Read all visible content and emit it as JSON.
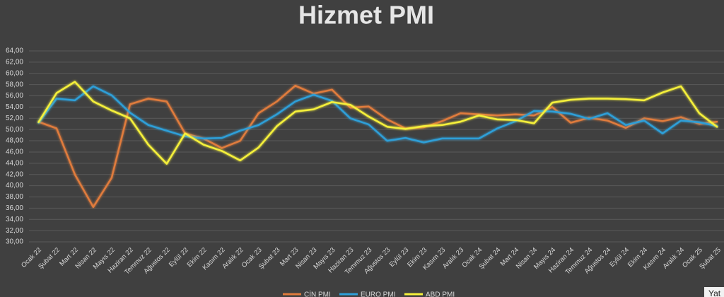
{
  "chart_data": {
    "type": "line",
    "title": "Hizmet PMI",
    "categories": [
      "Ocak 22",
      "Şubat 22",
      "Mart 22",
      "Nisan 22",
      "Mayıs 22",
      "Haziran 22",
      "Temmuz 22",
      "Ağustos 22",
      "Eylül 22",
      "Ekim 22",
      "Kasım 22",
      "Aralık 22",
      "Ocak 23",
      "Şubat 23",
      "Mart 23",
      "Nisan 23",
      "Mayıs 23",
      "Haziran 23",
      "Temmuz 23",
      "Ağustos 23",
      "Eylül 23",
      "Ekim 23",
      "Kasım 23",
      "Aralık 23",
      "Ocak 24",
      "Şubat 24",
      "Mart 24",
      "Nisan 24",
      "Mayıs 24",
      "Haziran 24",
      "Temmuz 24",
      "Ağustos 24",
      "Eylül 24",
      "Ekim 24",
      "Kasım 24",
      "Aralık 24",
      "Ocak 25",
      "Şubat 25"
    ],
    "series": [
      {
        "name": "CİN PMI",
        "color": "#e07b3c",
        "values": [
          51.4,
          50.2,
          42.0,
          36.2,
          41.4,
          54.5,
          55.5,
          55.0,
          49.3,
          48.4,
          46.7,
          48.0,
          52.9,
          55.0,
          57.8,
          56.4,
          57.1,
          53.9,
          54.1,
          51.8,
          50.2,
          50.4,
          51.5,
          52.9,
          52.7,
          52.5,
          52.7,
          52.5,
          54.0,
          51.2,
          52.1,
          51.6,
          50.3,
          52.0,
          51.5,
          52.2,
          51.0,
          51.4
        ]
      },
      {
        "name": "EURO PMI",
        "color": "#2e9fd8",
        "values": [
          51.1,
          55.5,
          55.2,
          57.7,
          56.1,
          53.0,
          50.8,
          49.8,
          48.8,
          48.4,
          48.5,
          49.8,
          50.8,
          52.7,
          55.0,
          56.2,
          55.1,
          52.0,
          50.9,
          48.0,
          48.5,
          47.7,
          48.4,
          48.4,
          48.4,
          50.2,
          51.5,
          53.3,
          53.2,
          52.8,
          51.9,
          52.9,
          50.8,
          51.6,
          49.3,
          51.6,
          51.3,
          50.6
        ]
      },
      {
        "name": "ABD PMI",
        "color": "#f5f03a",
        "values": [
          51.2,
          56.5,
          58.5,
          55.0,
          53.4,
          52.0,
          47.3,
          43.9,
          49.3,
          47.3,
          46.2,
          44.5,
          46.8,
          50.6,
          53.2,
          53.6,
          54.9,
          54.4,
          52.3,
          50.5,
          50.1,
          50.6,
          50.8,
          51.4,
          52.5,
          51.8,
          51.7,
          51.1,
          54.8,
          55.3,
          55.5,
          55.5,
          55.4,
          55.2,
          56.6,
          57.7,
          52.9,
          50.4
        ]
      }
    ],
    "ylim": [
      30,
      64
    ],
    "yticks": [
      {
        "value": 30,
        "label": "30,00"
      },
      {
        "value": 32,
        "label": "32,00"
      },
      {
        "value": 34,
        "label": "34,00"
      },
      {
        "value": 36,
        "label": "36,00"
      },
      {
        "value": 38,
        "label": "38,00"
      },
      {
        "value": 40,
        "label": "40,00"
      },
      {
        "value": 42,
        "label": "42,00"
      },
      {
        "value": 44,
        "label": "44,00"
      },
      {
        "value": 46,
        "label": "46,00"
      },
      {
        "value": 48,
        "label": "48,00"
      },
      {
        "value": 50,
        "label": "50,00"
      },
      {
        "value": 52,
        "label": "52,00"
      },
      {
        "value": 54,
        "label": "54,00"
      },
      {
        "value": 56,
        "label": "56,00"
      },
      {
        "value": 58,
        "label": "58,00"
      },
      {
        "value": 60,
        "label": "60,00"
      },
      {
        "value": 62,
        "label": "62,00"
      },
      {
        "value": 64,
        "label": "64,00"
      }
    ],
    "grid": true
  },
  "corner_label": "Yat"
}
